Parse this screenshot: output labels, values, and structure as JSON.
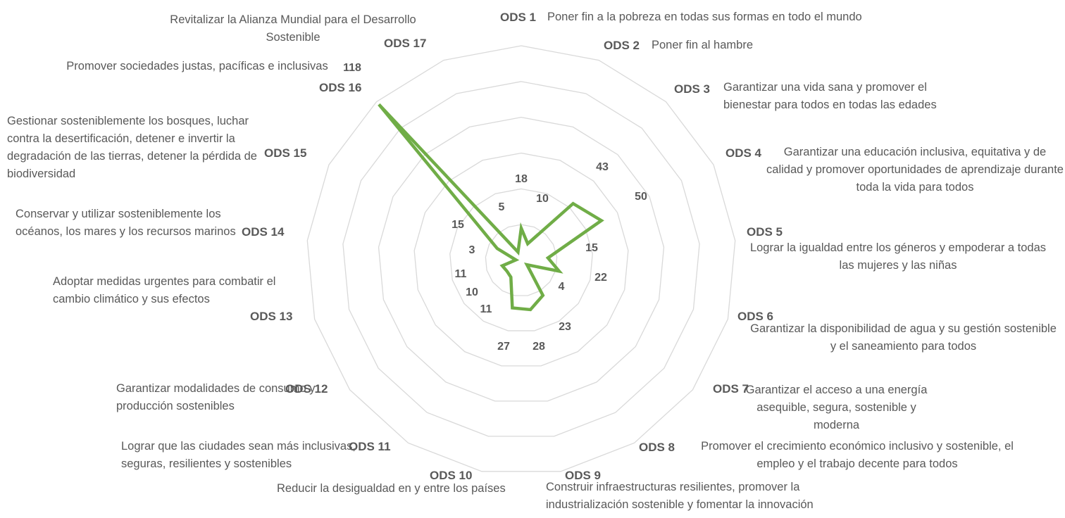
{
  "chart_data": {
    "type": "radar",
    "categories": [
      "ODS 1",
      "ODS 2",
      "ODS 3",
      "ODS 4",
      "ODS 5",
      "ODS 6",
      "ODS 7",
      "ODS 8",
      "ODS 9",
      "ODS 10",
      "ODS 11",
      "ODS 12",
      "ODS 13",
      "ODS 14",
      "ODS 15",
      "ODS 16",
      "ODS 17"
    ],
    "descriptions": [
      "Poner fin a la pobreza en todas sus formas en todo el mundo",
      "Poner fin al hambre",
      "Garantizar una vida sana y promover el bienestar para todos en todas las edades",
      "Garantizar una educación inclusiva, equitativa y de calidad y promover oportunidades de aprendizaje durante toda la vida para todos",
      "Lograr la igualdad entre los géneros y empoderar a todas las mujeres y las niñas",
      "Garantizar la disponibilidad de agua y su gestión sostenible y el saneamiento para todos",
      "Garantizar el acceso a una energía asequible, segura, sostenible y moderna",
      "Promover el crecimiento económico inclusivo y sostenible, el empleo y el trabajo decente para todos",
      "Construir infraestructuras resilientes, promover la industrialización sostenible y fomentar la innovación",
      "Reducir la desigualdad en y entre los países",
      "Lograr que las ciudades sean más inclusivas, seguras, resilientes y sostenibles",
      "Garantizar modalidades de consumo y producción sostenibles",
      "Adoptar medidas urgentes para combatir el cambio climático y sus efectos",
      "Conservar y utilizar sosteniblemente los océanos, los mares y los recursos marinos",
      "Gestionar sosteniblemente los bosques, luchar contra la desertificación, detener e invertir la degradación de las tierras, detener la pérdida de biodiversidad",
      "Promover sociedades justas, pacíficas e inclusivas",
      "Revitalizar la Alianza Mundial para el Desarrollo Sostenible"
    ],
    "values": [
      18,
      10,
      43,
      50,
      15,
      22,
      4,
      23,
      28,
      27,
      11,
      10,
      11,
      3,
      15,
      118,
      5
    ],
    "color": "#70ad47",
    "ylim": [
      0,
      120
    ],
    "yticks": [
      20,
      40,
      60,
      80,
      100,
      120
    ],
    "grid": true
  }
}
